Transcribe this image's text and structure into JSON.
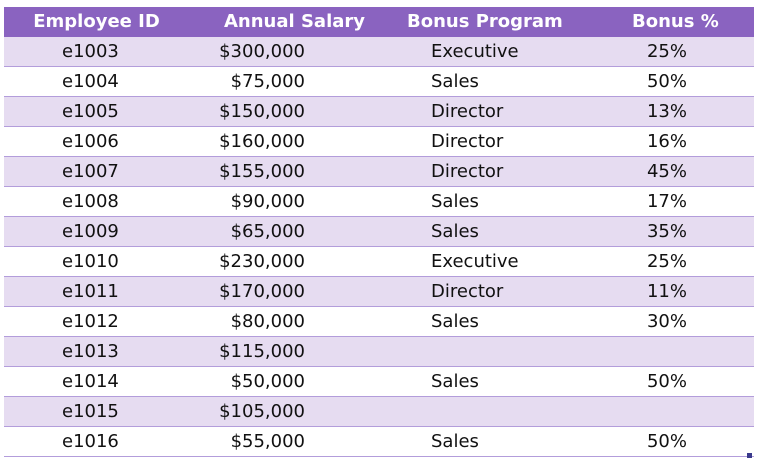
{
  "headers": {
    "employee_id": "Employee ID",
    "annual_salary": "Annual Salary",
    "bonus_program": "Bonus Program",
    "bonus_pct": "Bonus %"
  },
  "rows": [
    {
      "id": "e1003",
      "salary": "$300,000",
      "program": "Executive",
      "bonus": "25%"
    },
    {
      "id": "e1004",
      "salary": "$75,000",
      "program": "Sales",
      "bonus": "50%"
    },
    {
      "id": "e1005",
      "salary": "$150,000",
      "program": "Director",
      "bonus": "13%"
    },
    {
      "id": "e1006",
      "salary": "$160,000",
      "program": "Director",
      "bonus": "16%"
    },
    {
      "id": "e1007",
      "salary": "$155,000",
      "program": "Director",
      "bonus": "45%"
    },
    {
      "id": "e1008",
      "salary": "$90,000",
      "program": "Sales",
      "bonus": "17%"
    },
    {
      "id": "e1009",
      "salary": "$65,000",
      "program": "Sales",
      "bonus": "35%"
    },
    {
      "id": "e1010",
      "salary": "$230,000",
      "program": "Executive",
      "bonus": "25%"
    },
    {
      "id": "e1011",
      "salary": "$170,000",
      "program": "Director",
      "bonus": "11%"
    },
    {
      "id": "e1012",
      "salary": "$80,000",
      "program": "Sales",
      "bonus": "30%"
    },
    {
      "id": "e1013",
      "salary": "$115,000",
      "program": "",
      "bonus": ""
    },
    {
      "id": "e1014",
      "salary": "$50,000",
      "program": "Sales",
      "bonus": "50%"
    },
    {
      "id": "e1015",
      "salary": "$105,000",
      "program": "",
      "bonus": ""
    },
    {
      "id": "e1016",
      "salary": "$55,000",
      "program": "Sales",
      "bonus": "50%"
    }
  ],
  "colors": {
    "header_bg": "#8a63c0",
    "band_bg": "#e6dcf1",
    "plain_bg": "#ffffff"
  }
}
